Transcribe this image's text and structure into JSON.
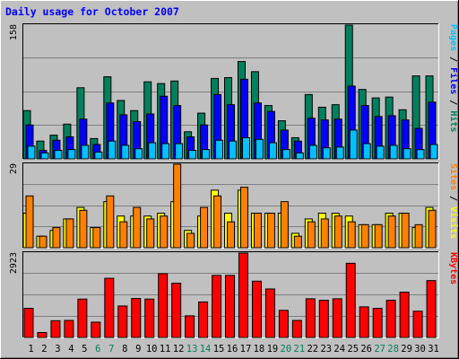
{
  "chart_data": {
    "type": "bar",
    "title": "Daily usage for October 2007",
    "categories": [
      "1",
      "2",
      "3",
      "4",
      "5",
      "6",
      "7",
      "8",
      "9",
      "10",
      "11",
      "12",
      "13",
      "14",
      "15",
      "16",
      "17",
      "18",
      "19",
      "20",
      "21",
      "22",
      "23",
      "24",
      "25",
      "26",
      "27",
      "28",
      "29",
      "30",
      "31"
    ],
    "weekend_days": [
      6,
      7,
      13,
      14,
      20,
      21,
      27,
      28
    ],
    "colors": {
      "background": "#c0c0c0",
      "title": "#0000ff",
      "hits": "#00805c",
      "files": "#0000ff",
      "pages": "#00c0ff",
      "visits": "#ffff00",
      "sites": "#ff8000",
      "kbytes": "#ff0000",
      "weekend_label": "#00805c",
      "weekday_label": "#000000"
    },
    "panels": [
      {
        "id": "hits-files-pages",
        "max_label": "158",
        "ymax": 158,
        "legend": [
          {
            "text": "Pages",
            "color": "#00c0ff"
          },
          {
            "text": " / ",
            "color": "#000000"
          },
          {
            "text": "Files",
            "color": "#0000ff"
          },
          {
            "text": " / ",
            "color": "#000000"
          },
          {
            "text": "Hits",
            "color": "#00805c"
          }
        ],
        "series": [
          {
            "name": "Hits",
            "color": "#00805c",
            "values": [
              57,
              21,
              28,
              41,
              84,
              24,
              97,
              69,
              57,
              91,
              89,
              92,
              32,
              54,
              95,
              96,
              115,
              103,
              63,
              45,
              25,
              76,
              61,
              64,
              158,
              82,
              72,
              73,
              58,
              98,
              98
            ]
          },
          {
            "name": "Files",
            "color": "#0000ff",
            "values": [
              40,
              10,
              22,
              26,
              47,
              17,
              66,
              52,
              44,
              53,
              74,
              63,
              26,
              40,
              76,
              64,
              94,
              66,
              56,
              34,
              21,
              48,
              46,
              47,
              86,
              63,
              50,
              51,
              46,
              36,
              67
            ]
          },
          {
            "name": "Pages",
            "color": "#00c0ff",
            "values": [
              15,
              7,
              10,
              11,
              16,
              8,
              21,
              16,
              12,
              19,
              18,
              18,
              10,
              11,
              22,
              21,
              25,
              23,
              19,
              11,
              7,
              16,
              13,
              14,
              34,
              18,
              15,
              16,
              12,
              11,
              17
            ]
          }
        ]
      },
      {
        "id": "visits-sites",
        "max_label": "29",
        "ymax": 29,
        "legend": [
          {
            "text": "Sites",
            "color": "#ff8000"
          },
          {
            "text": " / ",
            "color": "#000000"
          },
          {
            "text": "Visits",
            "color": "#ffff00"
          }
        ],
        "series": [
          {
            "name": "Visits",
            "color": "#ffff00",
            "values": [
              12,
              4,
              6,
              10,
              14,
              7,
              16,
              11,
              11,
              11,
              12,
              16,
              6,
              11,
              20,
              12,
              20,
              12,
              12,
              12,
              5,
              10,
              12,
              12,
              11,
              8,
              8,
              12,
              12,
              7,
              14
            ]
          },
          {
            "name": "Sites",
            "color": "#ff8000",
            "values": [
              18,
              4,
              7,
              10,
              13,
              7,
              18,
              9,
              14,
              10,
              11,
              29,
              5,
              14,
              18,
              9,
              21,
              12,
              12,
              16,
              4,
              9,
              10,
              11,
              9,
              8,
              8,
              11,
              12,
              8,
              13
            ]
          }
        ]
      },
      {
        "id": "kbytes",
        "max_label": "2923",
        "ymax": 2923,
        "legend": [
          {
            "text": "KBytes",
            "color": "#ff0000"
          }
        ],
        "series": [
          {
            "name": "KBytes",
            "color": "#ff0000",
            "values": [
              1010,
              170,
              580,
              590,
              1330,
              530,
              2050,
              1090,
              1350,
              1330,
              2210,
              1880,
              750,
              1230,
              2150,
              2150,
              2923,
              1950,
              1680,
              940,
              590,
              1340,
              1290,
              1340,
              2570,
              1060,
              1010,
              1290,
              1570,
              910,
              1970
            ]
          }
        ]
      }
    ]
  }
}
